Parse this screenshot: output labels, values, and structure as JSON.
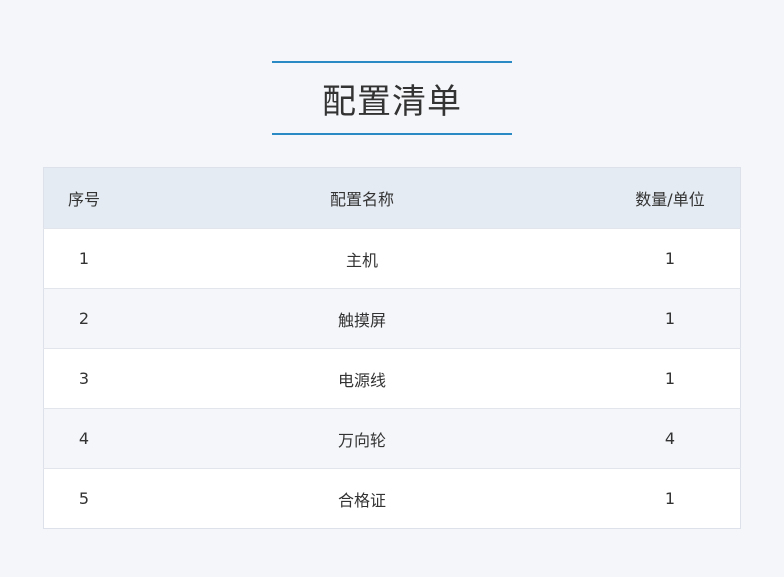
{
  "title": "配置清单",
  "table": {
    "headers": [
      "序号",
      "配置名称",
      "数量/单位"
    ],
    "rows": [
      [
        "1",
        "主机",
        "1"
      ],
      [
        "2",
        "触摸屏",
        "1"
      ],
      [
        "3",
        "电源线",
        "1"
      ],
      [
        "4",
        "万向轮",
        "4"
      ],
      [
        "5",
        "合格证",
        "1"
      ]
    ]
  },
  "colors": {
    "accent": "#2a8ac4",
    "header_bg": "#e5ebf2",
    "page_bg": "#f4f6fa"
  }
}
